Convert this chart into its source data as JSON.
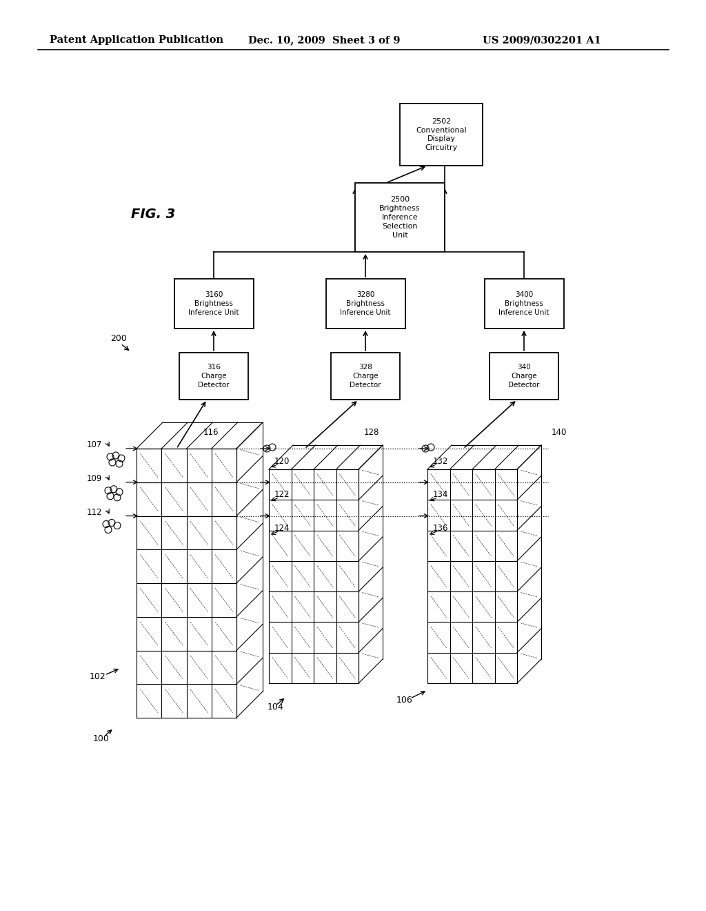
{
  "title_line1": "Patent Application Publication",
  "title_line2": "Dec. 10, 2009  Sheet 3 of 9",
  "title_line3": "US 2009/0302201 A1",
  "fig_label": "FIG. 3",
  "background": "#ffffff"
}
